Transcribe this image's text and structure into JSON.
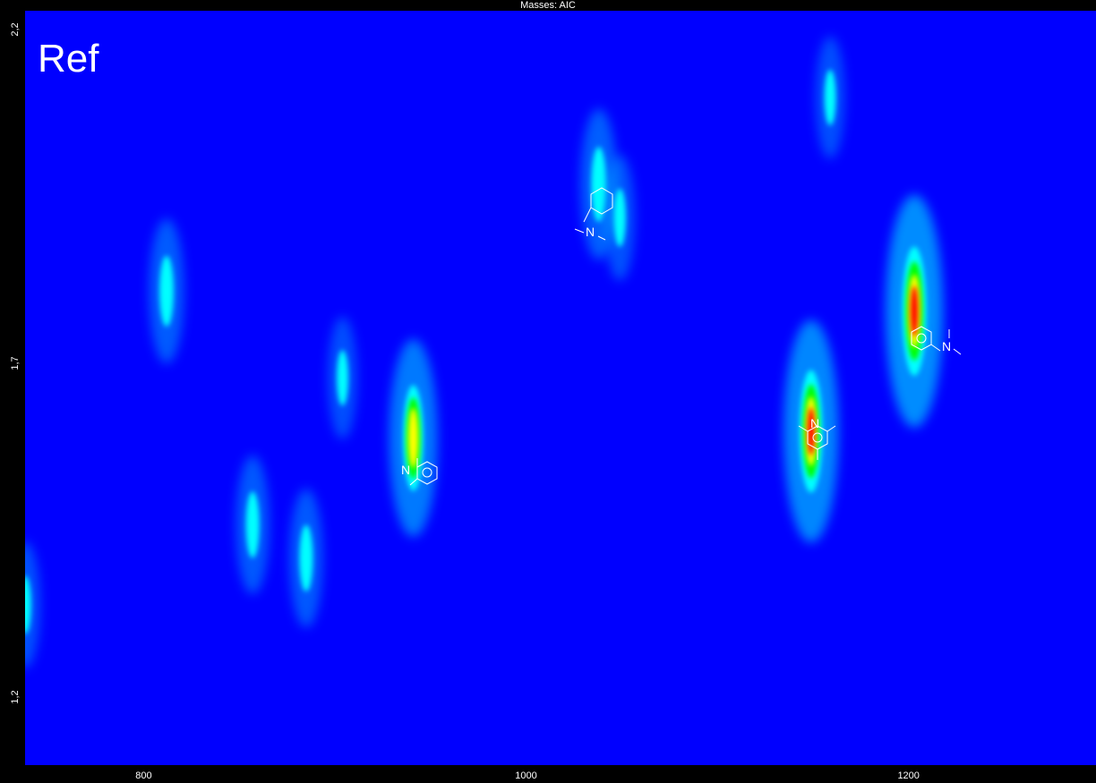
{
  "title": "Masses: AIC",
  "label": "Ref",
  "chart_data": {
    "type": "heatmap",
    "x_ticks": [
      800,
      1000,
      1200
    ],
    "y_ticks": [
      "2,2",
      "1,7",
      "1,2"
    ],
    "x_range": [
      738,
      1298
    ],
    "y_range": [
      1.1,
      2.23
    ],
    "colormap": [
      "#0000ff",
      "#00ffff",
      "#00ff00",
      "#ffff00",
      "#ff0000"
    ],
    "peaks": [
      {
        "x": 812,
        "y": 1.81,
        "intensity": 0.3
      },
      {
        "x": 857,
        "y": 1.46,
        "intensity": 0.25
      },
      {
        "x": 885,
        "y": 1.41,
        "intensity": 0.25
      },
      {
        "x": 904,
        "y": 1.68,
        "intensity": 0.12
      },
      {
        "x": 941,
        "y": 1.59,
        "intensity": 0.72
      },
      {
        "x": 1038,
        "y": 1.97,
        "intensity": 0.35
      },
      {
        "x": 1049,
        "y": 1.92,
        "intensity": 0.15
      },
      {
        "x": 1149,
        "y": 1.6,
        "intensity": 0.92
      },
      {
        "x": 1159,
        "y": 2.1,
        "intensity": 0.12
      },
      {
        "x": 1203,
        "y": 1.78,
        "intensity": 1.0
      },
      {
        "x": 738,
        "y": 1.34,
        "intensity": 0.15
      }
    ]
  }
}
